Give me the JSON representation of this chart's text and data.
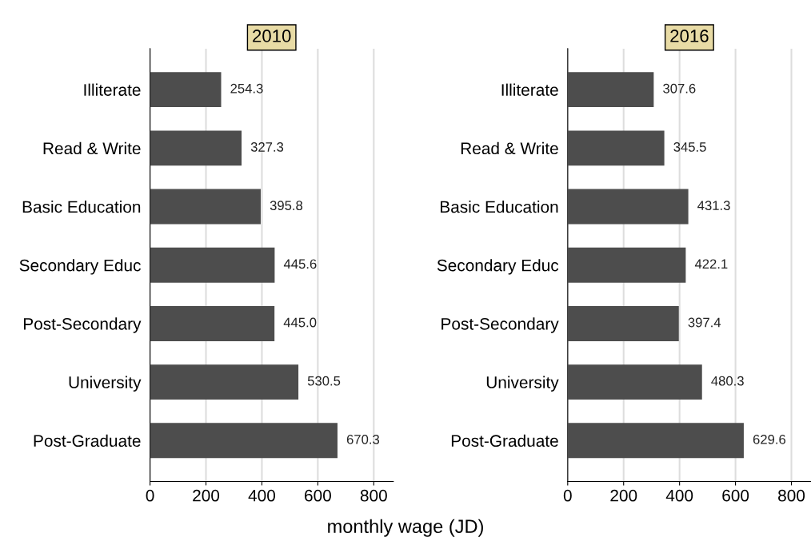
{
  "chart_data": [
    {
      "type": "bar",
      "orientation": "horizontal",
      "title": "2010",
      "xlabel": "monthly wage (JD)",
      "categories": [
        "Illiterate",
        "Read & Write",
        "Basic Education",
        "Secondary Educ",
        "Post-Secondary",
        "University",
        "Post-Graduate"
      ],
      "values": [
        254.3,
        327.3,
        395.8,
        445.6,
        445.0,
        530.5,
        670.3
      ],
      "value_labels": [
        "254.3",
        "327.3",
        "395.8",
        "445.6",
        "445.0",
        "530.5",
        "670.3"
      ],
      "color": "#4d4d4d",
      "xlim": [
        0,
        870
      ],
      "xticks": [
        0,
        200,
        400,
        600,
        800
      ],
      "grid": "x"
    },
    {
      "type": "bar",
      "orientation": "horizontal",
      "title": "2016",
      "categories": [
        "Illiterate",
        "Read & Write",
        "Basic Education",
        "Secondary Educ",
        "Post-Secondary",
        "University",
        "Post-Graduate"
      ],
      "values": [
        307.6,
        345.5,
        431.3,
        422.1,
        397.4,
        480.3,
        629.6
      ],
      "value_labels": [
        "307.6",
        "345.5",
        "431.3",
        "422.1",
        "397.4",
        "480.3",
        "629.6"
      ],
      "color": "#4d4d4d",
      "xlim": [
        0,
        870
      ],
      "xticks": [
        0,
        200,
        400,
        600,
        800
      ],
      "grid": "x"
    }
  ]
}
